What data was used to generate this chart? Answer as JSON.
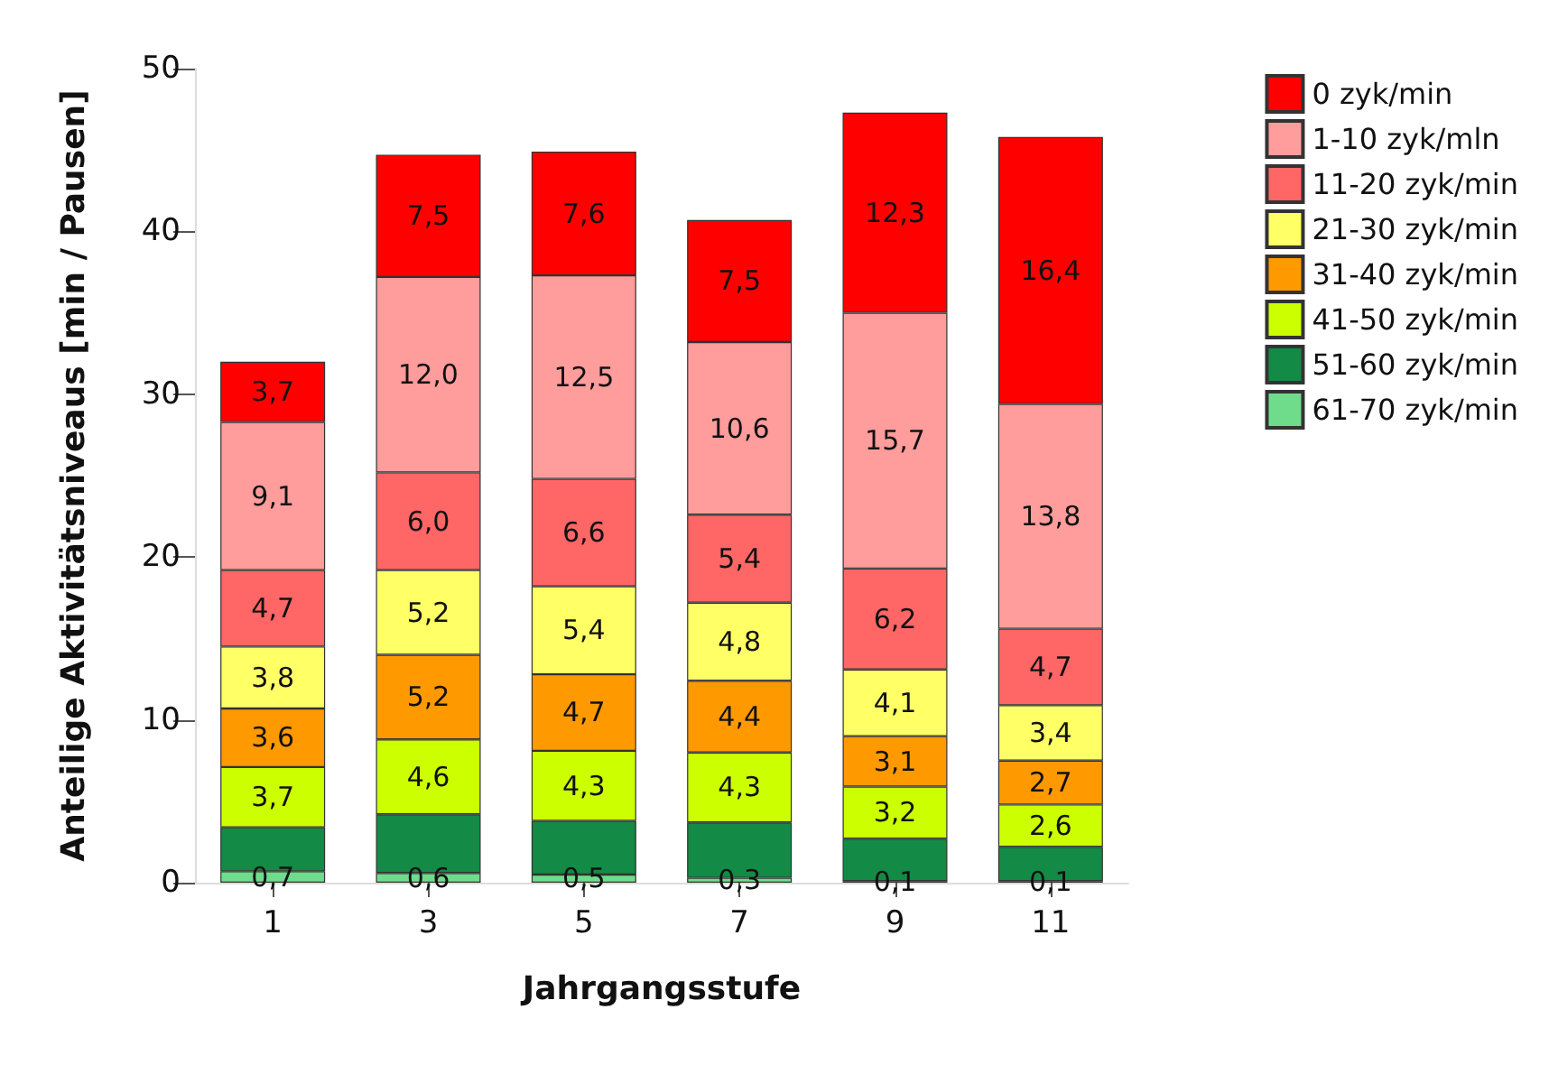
{
  "chart_data": {
    "type": "bar",
    "stacked": true,
    "xlabel": "Jahrgangsstufe",
    "ylabel": "Anteilige Aktivitätsniveaus [min / Pausen]",
    "categories": [
      "1",
      "3",
      "5",
      "7",
      "9",
      "11"
    ],
    "ylim": [
      0,
      50
    ],
    "yticks": [
      0,
      10,
      20,
      30,
      40,
      50
    ],
    "grid": false,
    "legend": "top right",
    "series": [
      {
        "name": "61-70 zyk/min",
        "color": "#6fdc8c",
        "values": [
          0.7,
          0.6,
          0.5,
          0.3,
          0.1,
          0.1
        ],
        "value_labels": [
          "0,7",
          "0,6",
          "0,5",
          "0,3",
          "0,1",
          "0,1"
        ]
      },
      {
        "name": "51-60 zyk/min",
        "color": "#138a45",
        "values": [
          2.7,
          3.6,
          3.3,
          3.4,
          2.6,
          2.1
        ],
        "value_labels": [
          null,
          null,
          null,
          null,
          null,
          null
        ]
      },
      {
        "name": "41-50 zyk/min",
        "color": "#ccff00",
        "values": [
          3.7,
          4.6,
          4.3,
          4.3,
          3.2,
          2.6
        ],
        "value_labels": [
          "3,7",
          "4,6",
          "4,3",
          "4,3",
          "3,2",
          "2,6"
        ]
      },
      {
        "name": "31-40 zyk/min",
        "color": "#ff9900",
        "values": [
          3.6,
          5.2,
          4.7,
          4.4,
          3.1,
          2.7
        ],
        "value_labels": [
          "3,6",
          "5,2",
          "4,7",
          "4,4",
          "3,1",
          "2,7"
        ]
      },
      {
        "name": "21-30 zyk/min",
        "color": "#ffff66",
        "values": [
          3.8,
          5.2,
          5.4,
          4.8,
          4.1,
          3.4
        ],
        "value_labels": [
          "3,8",
          "5,2",
          "5,4",
          "4,8",
          "4,1",
          "3,4"
        ]
      },
      {
        "name": "11-20 zyk/min",
        "color": "#ff6666",
        "values": [
          4.7,
          6.0,
          6.6,
          5.4,
          6.2,
          4.7
        ],
        "value_labels": [
          "4,7",
          "6,0",
          "6,6",
          "5,4",
          "6,2",
          "4,7"
        ]
      },
      {
        "name": "1-10 zyk/mln",
        "color": "#ff9c9c",
        "values": [
          9.1,
          12.0,
          12.5,
          10.6,
          15.7,
          13.8
        ],
        "value_labels": [
          "9,1",
          "12,0",
          "12,5",
          "10,6",
          "15,7",
          "13,8"
        ]
      },
      {
        "name": "0 zyk/min",
        "color": "#ff0000",
        "values": [
          3.7,
          7.5,
          7.6,
          7.5,
          12.3,
          16.4
        ],
        "value_labels": [
          "3,7",
          "7,5",
          "7,6",
          "7,5",
          "12,3",
          "16,4"
        ]
      }
    ]
  }
}
